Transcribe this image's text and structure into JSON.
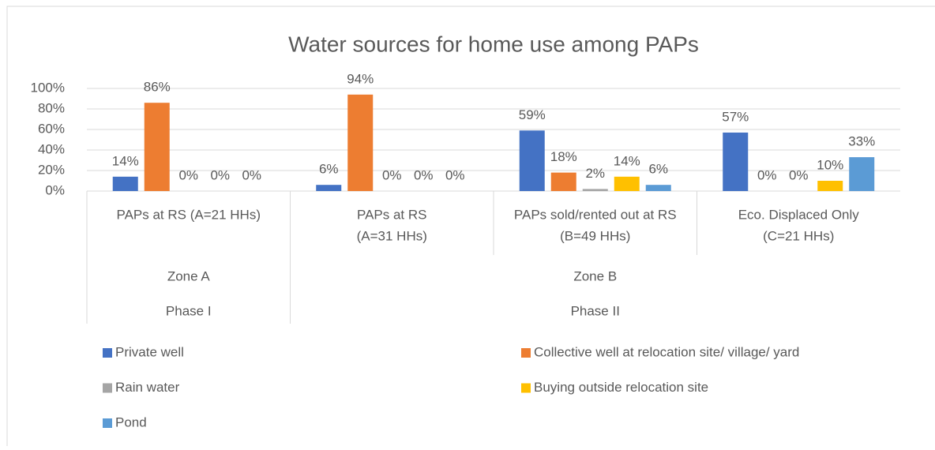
{
  "chart_data": {
    "type": "bar",
    "title": "Water sources for home use among PAPs",
    "categories": [
      [
        "PAPs at RS (A=21 HHs)"
      ],
      [
        "PAPs at RS",
        "(A=31 HHs)"
      ],
      [
        "PAPs sold/rented out at RS",
        "(B=49 HHs)"
      ],
      [
        "Eco. Displaced Only",
        "(C=21 HHs)"
      ]
    ],
    "zones": [
      {
        "label": "Zone A",
        "span": 1
      },
      {
        "label": "Zone B",
        "span": 3
      }
    ],
    "phases": [
      {
        "label": "Phase I",
        "span": 1
      },
      {
        "label": "Phase II",
        "span": 3
      }
    ],
    "series": [
      {
        "name": "Private well",
        "color": "#4472c4",
        "values": [
          14,
          6,
          59,
          57
        ],
        "value_labels": [
          "14%",
          "6%",
          "59%",
          "57%"
        ]
      },
      {
        "name": "Collective well at relocation site/ village/ yard",
        "color": "#ed7d31",
        "values": [
          86,
          94,
          18,
          0
        ],
        "value_labels": [
          "86%",
          "94%",
          "18%",
          "0%"
        ]
      },
      {
        "name": "Rain water",
        "color": "#a5a5a5",
        "values": [
          0,
          0,
          2,
          0
        ],
        "value_labels": [
          "0%",
          "0%",
          "2%",
          "0%"
        ]
      },
      {
        "name": "Buying outside relocation site",
        "color": "#ffc000",
        "values": [
          0,
          0,
          14,
          10
        ],
        "value_labels": [
          "0%",
          "0%",
          "14%",
          "10%"
        ]
      },
      {
        "name": "Pond",
        "color": "#5b9bd5",
        "values": [
          0,
          0,
          6,
          33
        ],
        "value_labels": [
          "0%",
          "0%",
          "6%",
          "33%"
        ]
      }
    ],
    "ylim": [
      0,
      100
    ],
    "yticks": [
      {
        "value": 0,
        "label": "0%"
      },
      {
        "value": 20,
        "label": "20%"
      },
      {
        "value": 40,
        "label": "40%"
      },
      {
        "value": 60,
        "label": "60%"
      },
      {
        "value": 80,
        "label": "80%"
      },
      {
        "value": 100,
        "label": "100%"
      }
    ],
    "grid": true,
    "legend": "bottom"
  }
}
